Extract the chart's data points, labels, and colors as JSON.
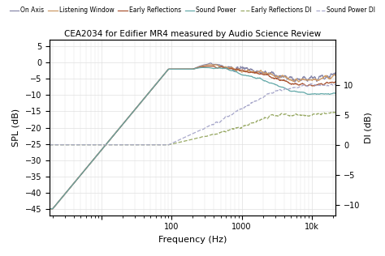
{
  "title": "CEA2034 for Edifier MR4 measured by Audio Science Review",
  "xlabel": "Frequency (Hz)",
  "ylabel_left": "SPL (dB)",
  "ylabel_right": "DI (dB)",
  "ylim_left": [
    -47,
    7
  ],
  "ylim_right": [
    -11.75,
    17.5
  ],
  "xlim": [
    1.8,
    22000
  ],
  "yticks_left": [
    5,
    0,
    -5,
    -10,
    -15,
    -20,
    -25,
    -30,
    -35,
    -40,
    -45
  ],
  "yticks_right": [
    10,
    5,
    0,
    -5,
    -10
  ],
  "legend_entries": [
    "On Axis",
    "Listening Window",
    "Early Reflections",
    "Sound Power",
    "Early Reflections DI",
    "Sound Power DI"
  ],
  "colors": {
    "on_axis": "#8888aa",
    "listening_window": "#cc9966",
    "early_reflections": "#aa5533",
    "sound_power": "#66aaaa",
    "er_di": "#99aa66",
    "sp_di": "#aaaacc"
  },
  "background_color": "#ffffff",
  "grid_color": "#e0e0e0"
}
